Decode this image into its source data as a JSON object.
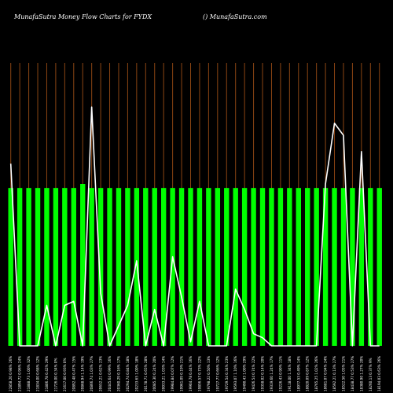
{
  "header": {
    "title": "MunafaSutra  Money Flow  Charts for FYDX",
    "site": "() MunafaSutra.com"
  },
  "colors": {
    "background": "#000000",
    "grid": "#8b4513",
    "bar": "#00ff00",
    "line": "#ffffff",
    "text": "#ffffff"
  },
  "chart_data": {
    "type": "bar",
    "ylim": [
      0,
      1
    ],
    "grid": "vertical",
    "categories": [
      "22858.20 0.98% 26%",
      "21894.72 0.96% 24%",
      "21888.73 1.00% 32%",
      "21834.00 0.68% 12%",
      "21806.78 0.42% 29%",
      "21726.00 0.34% 0%",
      "21617.00 0.93% 0%",
      "20892.48 0.47% 15%",
      "20868.94 1.14% 19%",
      "20866.74 1.03% 27%",
      "20652.21 0.62% 23%",
      "20445.64 0.99% 16%",
      "20360.29 0.16% 17%",
      "20294.74 0.84% 18%",
      "20233.65 1.00% 18%",
      "20178.71 0.65% 28%",
      "20085.30 0.24% 20%",
      "20033.21 1.03% 14%",
      "19984.84 0.07% 12%",
      "19961.09 0.19% 21%",
      "19904.78 0.44% 16%",
      "19856.57 0.73% 22%",
      "19798.22 0.50% 13%",
      "19727.77 0.66% 12%",
      "19729.54 0.34% 23%",
      "19593.07 1.10% 16%",
      "19490.43 1.00% 29%",
      "19426.54 0.74% 22%",
      "19358.02 0.14% 20%",
      "19319.60 1.24% 17%",
      "19226.43 0.90% 11%",
      "19118.00 1.34% 18%",
      "18977.53 0.49% 14%",
      "18820.09 0.87% 12%",
      "18765.25 1.02% 26%",
      "18681.07 0.94% 24%",
      "18592.21 0.13% 27%",
      "18522.50 1.05% 21%",
      "18438.77 0.53% 27%",
      "18380.90 1.27% 20%",
      "18260.13 0.37% 9%",
      "18194.03 0.63% 26%"
    ],
    "series": [
      {
        "values": [
          0.39,
          0.39,
          0.39,
          0.39,
          0.39,
          0.39,
          0.39,
          0.39,
          0.4,
          0.39,
          0.39,
          0.39,
          0.39,
          0.39,
          0.39,
          0.39,
          0.39,
          0.39,
          0.39,
          0.39,
          0.39,
          0.39,
          0.39,
          0.39,
          0.39,
          0.39,
          0.39,
          0.39,
          0.39,
          0.39,
          0.39,
          0.39,
          0.39,
          0.39,
          0.39,
          0.39,
          0.39,
          0.39,
          0.39,
          0.39,
          0.39,
          0.39
        ]
      },
      {
        "values": [
          0.45,
          0.0,
          0.0,
          0.0,
          0.1,
          0.0,
          0.1,
          0.11,
          0.0,
          0.59,
          0.13,
          0.0,
          0.05,
          0.1,
          0.21,
          0.0,
          0.09,
          0.0,
          0.22,
          0.12,
          0.01,
          0.11,
          0.0,
          0.0,
          0.0,
          0.14,
          0.09,
          0.03,
          0.02,
          0.0,
          0.0,
          0.0,
          0.0,
          0.0,
          0.0,
          0.4,
          0.55,
          0.52,
          0.0,
          0.48,
          0.0,
          0.0
        ]
      }
    ]
  }
}
